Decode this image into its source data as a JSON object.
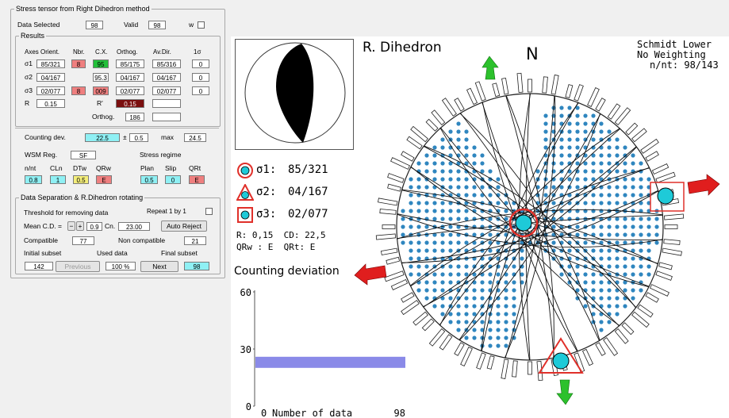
{
  "stress_panel": {
    "title": "Stress tensor from Right Dihedron method",
    "data_selected_label": "Data Selected",
    "data_selected_value": "98",
    "valid_label": "Valid",
    "valid_value": "98",
    "w_label": "w",
    "results": {
      "title": "Results",
      "headers": [
        "Axes Orient.",
        "Nbr.",
        "C.X.",
        "Orthog.",
        "Av.Dir.",
        "1σ"
      ],
      "rows": [
        {
          "label": "σ1",
          "orient": "85/321",
          "nbr": "8",
          "cx": "95",
          "orthog": "85/175",
          "avdir": "85/316",
          "sigma": "0"
        },
        {
          "label": "σ2",
          "orient": "04/167",
          "nbr": "",
          "cx": "95.3",
          "orthog": "04/167",
          "avdir": "04/167",
          "sigma": "0"
        },
        {
          "label": "σ3",
          "orient": "02/077",
          "nbr": "8",
          "cx": "009",
          "orthog": "02/077",
          "avdir": "02/077",
          "sigma": "0"
        }
      ],
      "r_label": "R",
      "r_value": "0.15",
      "rp_label": "R'",
      "rp_value": "0.15",
      "orthog_label": "Orthog.",
      "orthog_value": "186"
    },
    "counting": {
      "label": "Counting dev.",
      "value": "22.5",
      "pm_label": "±",
      "pm_value": "0.5",
      "max_label": "max",
      "max_value": "24.5"
    },
    "wsm": {
      "label": "WSM Reg.",
      "value": "SF",
      "stress_regime_label": "Stress regime",
      "cols": [
        {
          "label": "n/nt",
          "value": "0.8"
        },
        {
          "label": "CLn",
          "value": "1"
        },
        {
          "label": "DTw",
          "value": "0.5"
        },
        {
          "label": "QRw",
          "value": "E"
        },
        {
          "label": "Plan",
          "value": "0.5"
        },
        {
          "label": "Slip",
          "value": "0"
        },
        {
          "label": "QRt",
          "value": "E"
        }
      ]
    },
    "separation": {
      "title": "Data Separation & R.Dihedron rotating",
      "threshold_label": "Threshold for removing data",
      "repeat_label": "Repeat 1 by 1",
      "mean_label": "Mean C.D. =",
      "mean_value": "0.9",
      "cn_label": "Cn.",
      "cn_value": "23.00",
      "auto_reject_label": "Auto Reject",
      "compatible_label": "Compatible",
      "compatible_value": "77",
      "noncompatible_label": "Non compatible",
      "noncompatible_value": "21",
      "initial_subset_label": "Initial subset",
      "used_data_label": "Used data",
      "final_subset_label": "Final subset",
      "initial_subset_value": "142",
      "previous_label": "Previous",
      "used_data_value": "100 %",
      "next_label": "Next",
      "final_subset_value": "98"
    }
  },
  "plot": {
    "title": "R. Dihedron",
    "north": "N",
    "projection_info": [
      "Schmidt Lower",
      "No Weighting",
      "n/nt: 98/143"
    ],
    "sigmas": [
      {
        "symbol": "σ1:",
        "value": "85/321"
      },
      {
        "symbol": "σ2:",
        "value": "04/167"
      },
      {
        "symbol": "σ3:",
        "value": "02/077"
      }
    ],
    "r_cd_line": "R: 0,15  CD: 22,5",
    "qr_line": "QRw : E  QRt: E",
    "colors": {
      "sigma_marker": "#1ecad8",
      "marker_outline": "#e0302a",
      "compression_arrow": "#e01e1e",
      "extension_arrow": "#2cc12c",
      "grid_dot": "#2f86bf",
      "histogram_bar": "#8a8ae8"
    }
  },
  "chart_data": {
    "type": "bar",
    "title": "Counting deviation",
    "xlabel": "Number of data",
    "x_ticks": [
      "0",
      "98"
    ],
    "y_ticks": [
      "60",
      "30",
      "0"
    ],
    "ylim": [
      0,
      60
    ],
    "series": [
      {
        "values": [
          23
        ]
      }
    ],
    "orientation": "horizontal"
  }
}
